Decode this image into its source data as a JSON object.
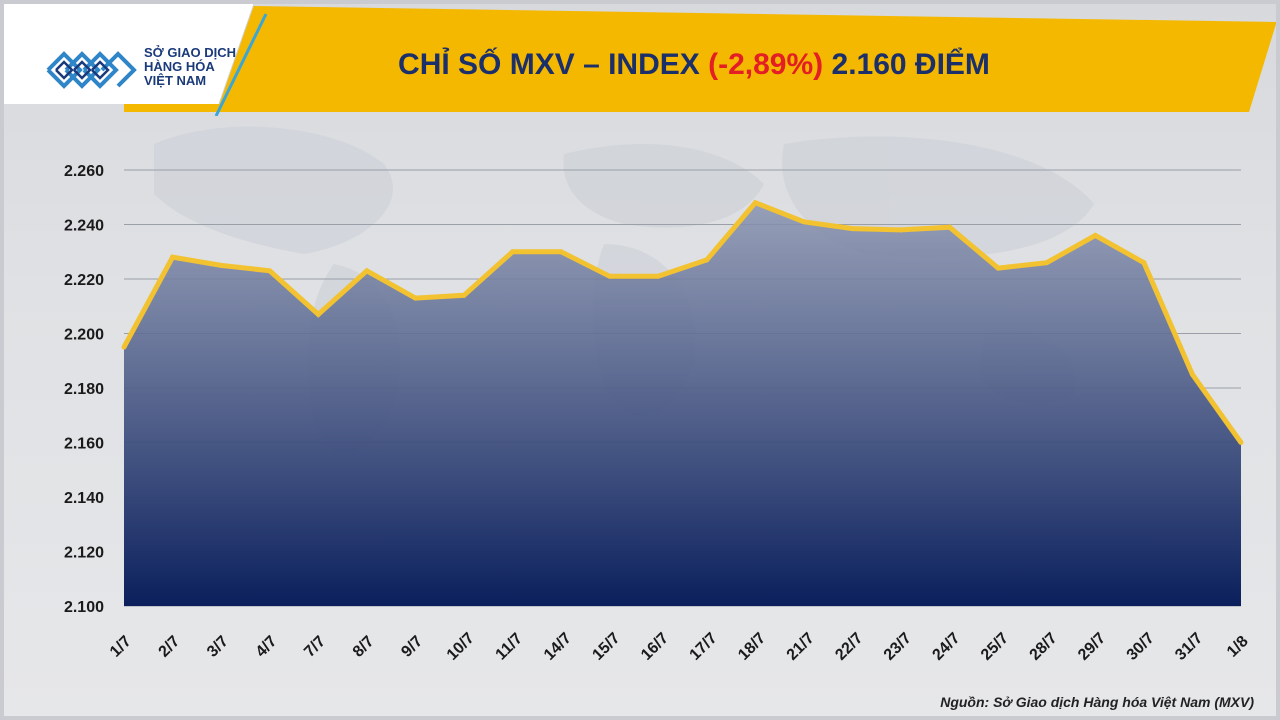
{
  "header": {
    "logo_lines": [
      "SỞ GIAO DỊCH",
      "HÀNG HÓA",
      "VIỆT NAM"
    ],
    "title_prefix": "CHỈ SỐ MXV – INDEX",
    "title_change": "(-2,89%)",
    "title_suffix": "2.160 ĐIỂM"
  },
  "source": "Nguồn: Sở Giao dịch Hàng hóa Việt Nam (MXV)",
  "colors": {
    "accent": "#F5B800",
    "title": "#1B2F6B",
    "negative": "#E31E24",
    "area_top": "#8A94B0",
    "area_bottom": "#0A1F5C",
    "line": "#F2C230"
  },
  "chart_data": {
    "type": "area",
    "title": "CHỈ SỐ MXV – INDEX (-2,89%) 2.160 ĐIỂM",
    "xlabel": "",
    "ylabel": "",
    "ylim": [
      2100,
      2260
    ],
    "ytick_values": [
      2100,
      2120,
      2140,
      2160,
      2180,
      2200,
      2220,
      2240,
      2260
    ],
    "ytick_labels": [
      "2.100",
      "2.120",
      "2.140",
      "2.160",
      "2.180",
      "2.200",
      "2.220",
      "2.240",
      "2.260"
    ],
    "grid": true,
    "categories": [
      "1/7",
      "2/7",
      "3/7",
      "4/7",
      "7/7",
      "8/7",
      "9/7",
      "10/7",
      "11/7",
      "14/7",
      "15/7",
      "16/7",
      "17/7",
      "18/7",
      "21/7",
      "22/7",
      "23/7",
      "24/7",
      "25/7",
      "28/7",
      "29/7",
      "30/7",
      "31/7",
      "1/8"
    ],
    "series": [
      {
        "name": "MXV-Index",
        "values": [
          2195,
          2228,
          2225,
          2223,
          2207,
          2223,
          2213,
          2214,
          2230,
          2230,
          2221,
          2221,
          2227,
          2248,
          2241,
          2238.5,
          2238,
          2239,
          2224,
          2226,
          2236,
          2226,
          2185,
          2160
        ]
      }
    ]
  }
}
